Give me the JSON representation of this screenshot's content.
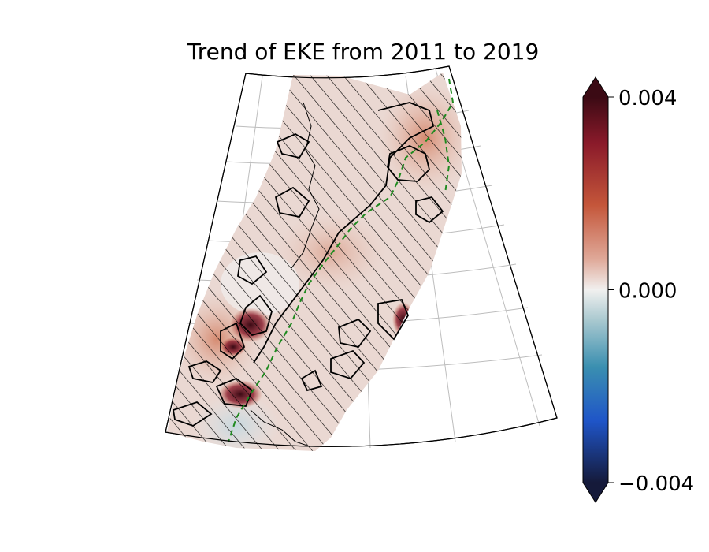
{
  "chart_data": {
    "type": "heatmap",
    "title": "Trend of EKE from 2011 to 2019",
    "xlabel": "",
    "ylabel": "",
    "colorbar": {
      "min": -0.004,
      "max": 0.004,
      "ticks": [
        {
          "value": 0.004,
          "label": "0.004"
        },
        {
          "value": 0.0,
          "label": "0.000"
        },
        {
          "value": -0.004,
          "label": "−0.004"
        }
      ],
      "extend": "both",
      "colormap": "balance (diverging blue-white-red)"
    },
    "projection": "conic sector map with graticule",
    "grid": true,
    "overlays": [
      "diagonal hatching (non-significant areas)",
      "black contour lines",
      "green dashed isobath line"
    ],
    "hotspots": [
      {
        "region": "south-west",
        "value": 0.004
      },
      {
        "region": "south-west lower",
        "value": 0.0035
      },
      {
        "region": "south-east rim",
        "value": 0.003
      },
      {
        "region": "north-east",
        "value": 0.0012
      },
      {
        "region": "far south-west",
        "value": -0.0008
      }
    ],
    "colors": {
      "max": "#3b0a14",
      "mid": "#f1f0ef",
      "min": "#151a3a"
    }
  }
}
